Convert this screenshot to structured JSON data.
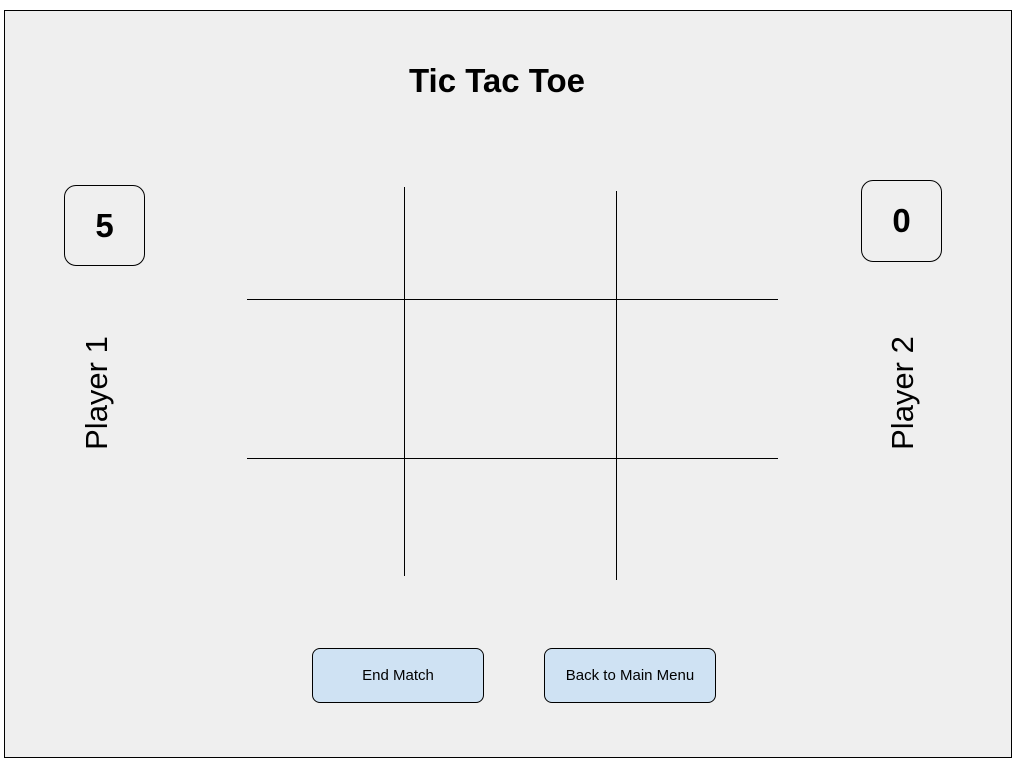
{
  "title": "Tic Tac Toe",
  "player1": {
    "label": "Player 1",
    "score": "5"
  },
  "player2": {
    "label": "Player 2",
    "score": "0"
  },
  "board": {
    "cells": [
      "",
      "",
      "",
      "",
      "",
      "",
      "",
      "",
      ""
    ]
  },
  "buttons": {
    "end_match": "End Match",
    "back_to_main_menu": "Back to Main Menu"
  },
  "colors": {
    "background": "#efefef",
    "button_fill": "#cfe2f3",
    "border": "#000000"
  }
}
